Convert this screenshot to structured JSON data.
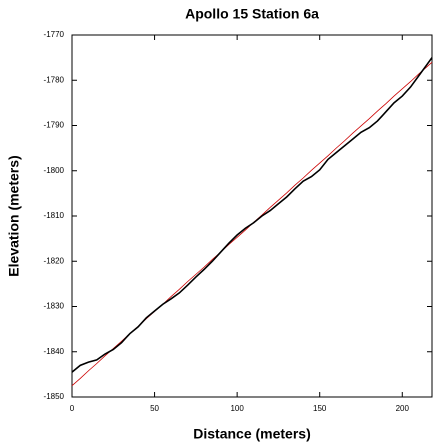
{
  "chart_data": {
    "type": "line",
    "title": "Apollo 15 Station 6a",
    "x_label": "Distance (meters)",
    "y_label": "Elevation (meters)",
    "x": [
      0,
      5,
      10,
      15,
      20,
      25,
      30,
      35,
      40,
      45,
      50,
      55,
      60,
      65,
      70,
      75,
      80,
      85,
      90,
      95,
      100,
      105,
      110,
      115,
      120,
      125,
      130,
      135,
      140,
      145,
      150,
      155,
      160,
      165,
      170,
      175,
      180,
      185,
      190,
      195,
      200,
      205,
      210,
      215,
      218
    ],
    "series": [
      {
        "color": "#000000",
        "values": [
          -1844.5,
          -1843,
          -1842.3,
          -1841.8,
          -1840.5,
          -1839.5,
          -1838,
          -1836,
          -1834.5,
          -1832.5,
          -1831,
          -1829.5,
          -1828.3,
          -1827,
          -1825.3,
          -1823.5,
          -1821.8,
          -1820,
          -1818,
          -1816,
          -1814.2,
          -1812.7,
          -1811.5,
          -1810,
          -1808.8,
          -1807.3,
          -1805.8,
          -1804,
          -1802.3,
          -1801.3,
          -1799.8,
          -1797.5,
          -1796,
          -1794.5,
          -1793,
          -1791.5,
          -1790.5,
          -1789,
          -1787,
          -1785,
          -1783.5,
          -1781.5,
          -1779,
          -1776.5,
          -1775
        ]
      },
      {
        "color": "#cc0000",
        "values": [
          -1847.5,
          -1845.9,
          -1844.2,
          -1842.6,
          -1840.9,
          -1839.3,
          -1837.7,
          -1836,
          -1834.4,
          -1832.7,
          -1831.1,
          -1829.5,
          -1827.8,
          -1826.2,
          -1824.5,
          -1822.9,
          -1821.3,
          -1819.6,
          -1818,
          -1816.3,
          -1814.7,
          -1813.1,
          -1811.4,
          -1809.8,
          -1808.1,
          -1806.5,
          -1804.9,
          -1803.2,
          -1801.6,
          -1799.9,
          -1798.3,
          -1796.7,
          -1795,
          -1793.4,
          -1791.7,
          -1790.1,
          -1788.5,
          -1786.8,
          -1785.2,
          -1783.5,
          -1781.9,
          -1780.3,
          -1778.6,
          -1777,
          -1776
        ]
      }
    ],
    "xlim": [
      0,
      218
    ],
    "xticks": [
      0,
      50,
      100,
      150,
      200
    ],
    "ylim": [
      -1850,
      -1770
    ],
    "yticks": [
      -1850,
      -1840,
      -1830,
      -1820,
      -1810,
      -1800,
      -1790,
      -1780,
      -1770
    ]
  }
}
